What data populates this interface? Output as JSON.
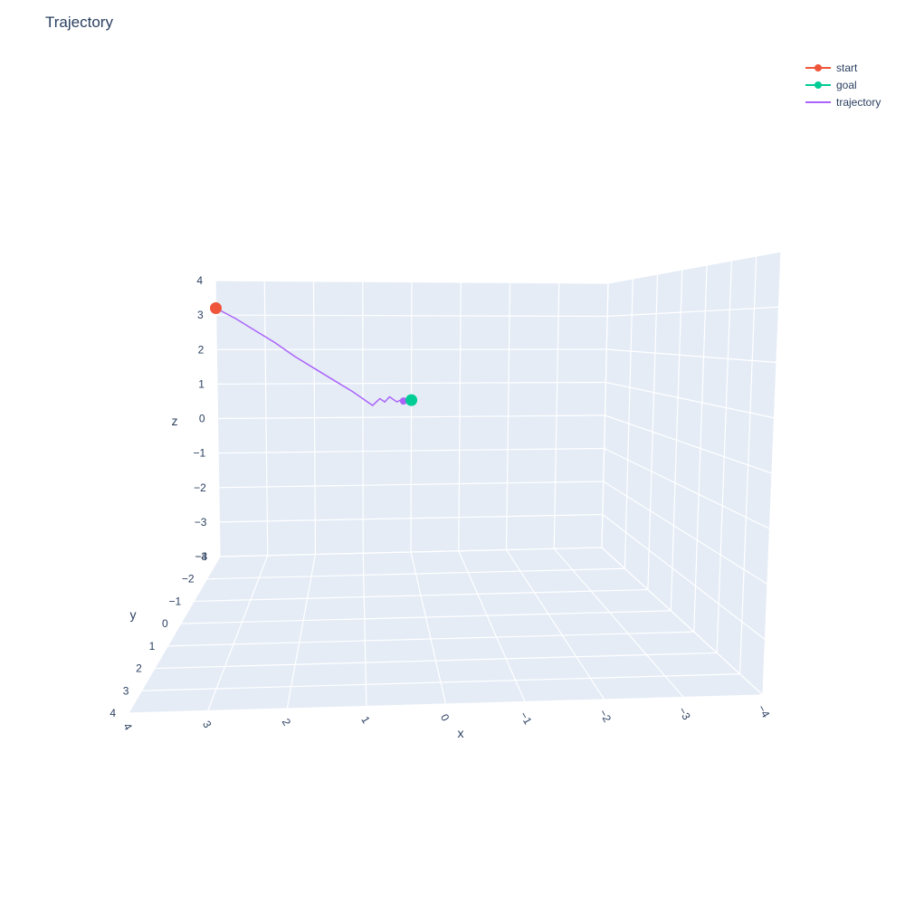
{
  "chart_data": {
    "type": "line",
    "title": "Trajectory",
    "xlabel": "x",
    "ylabel": "y",
    "zlabel": "z",
    "xlim": [
      -4,
      4
    ],
    "ylim": [
      -3,
      4
    ],
    "zlim": [
      -4,
      4
    ],
    "grid": true,
    "legend_position": "top-right",
    "background_color": "#e5ecf6",
    "x_ticks": [
      "4",
      "3",
      "2",
      "1",
      "0",
      "−1",
      "−2",
      "−3",
      "−4"
    ],
    "x_tick_values": [
      4,
      3,
      2,
      1,
      0,
      -1,
      -2,
      -3,
      -4
    ],
    "y_ticks": [
      "−3",
      "−2",
      "−1",
      "0",
      "1",
      "2",
      "3",
      "4"
    ],
    "y_tick_values": [
      -3,
      -2,
      -1,
      0,
      1,
      2,
      3,
      4
    ],
    "z_ticks": [
      "4",
      "3",
      "2",
      "1",
      "0",
      "−1",
      "−2",
      "−3",
      "−4"
    ],
    "z_tick_values": [
      4,
      3,
      2,
      1,
      0,
      -1,
      -2,
      -3,
      -4
    ],
    "series": [
      {
        "name": "start",
        "color": "#ef553b",
        "mode": "markers",
        "points": [
          [
            4.0,
            -3.0,
            3.2
          ]
        ]
      },
      {
        "name": "goal",
        "color": "#00cc96",
        "mode": "markers",
        "points": [
          [
            0.0,
            -3.0,
            0.5
          ]
        ]
      },
      {
        "name": "trajectory",
        "color": "#ab63fa",
        "mode": "lines",
        "points": [
          [
            4.0,
            -3.0,
            3.2
          ],
          [
            3.6,
            -3.0,
            2.9
          ],
          [
            3.2,
            -3.0,
            2.55
          ],
          [
            2.8,
            -3.0,
            2.2
          ],
          [
            2.4,
            -3.0,
            1.8
          ],
          [
            2.0,
            -3.0,
            1.45
          ],
          [
            1.6,
            -3.0,
            1.1
          ],
          [
            1.2,
            -3.0,
            0.75
          ],
          [
            0.8,
            -3.0,
            0.35
          ],
          [
            0.65,
            -3.0,
            0.55
          ],
          [
            0.55,
            -3.0,
            0.45
          ],
          [
            0.45,
            -3.0,
            0.6
          ],
          [
            0.3,
            -3.0,
            0.45
          ],
          [
            0.15,
            -3.0,
            0.55
          ],
          [
            0.05,
            -3.0,
            0.5
          ]
        ]
      }
    ]
  }
}
